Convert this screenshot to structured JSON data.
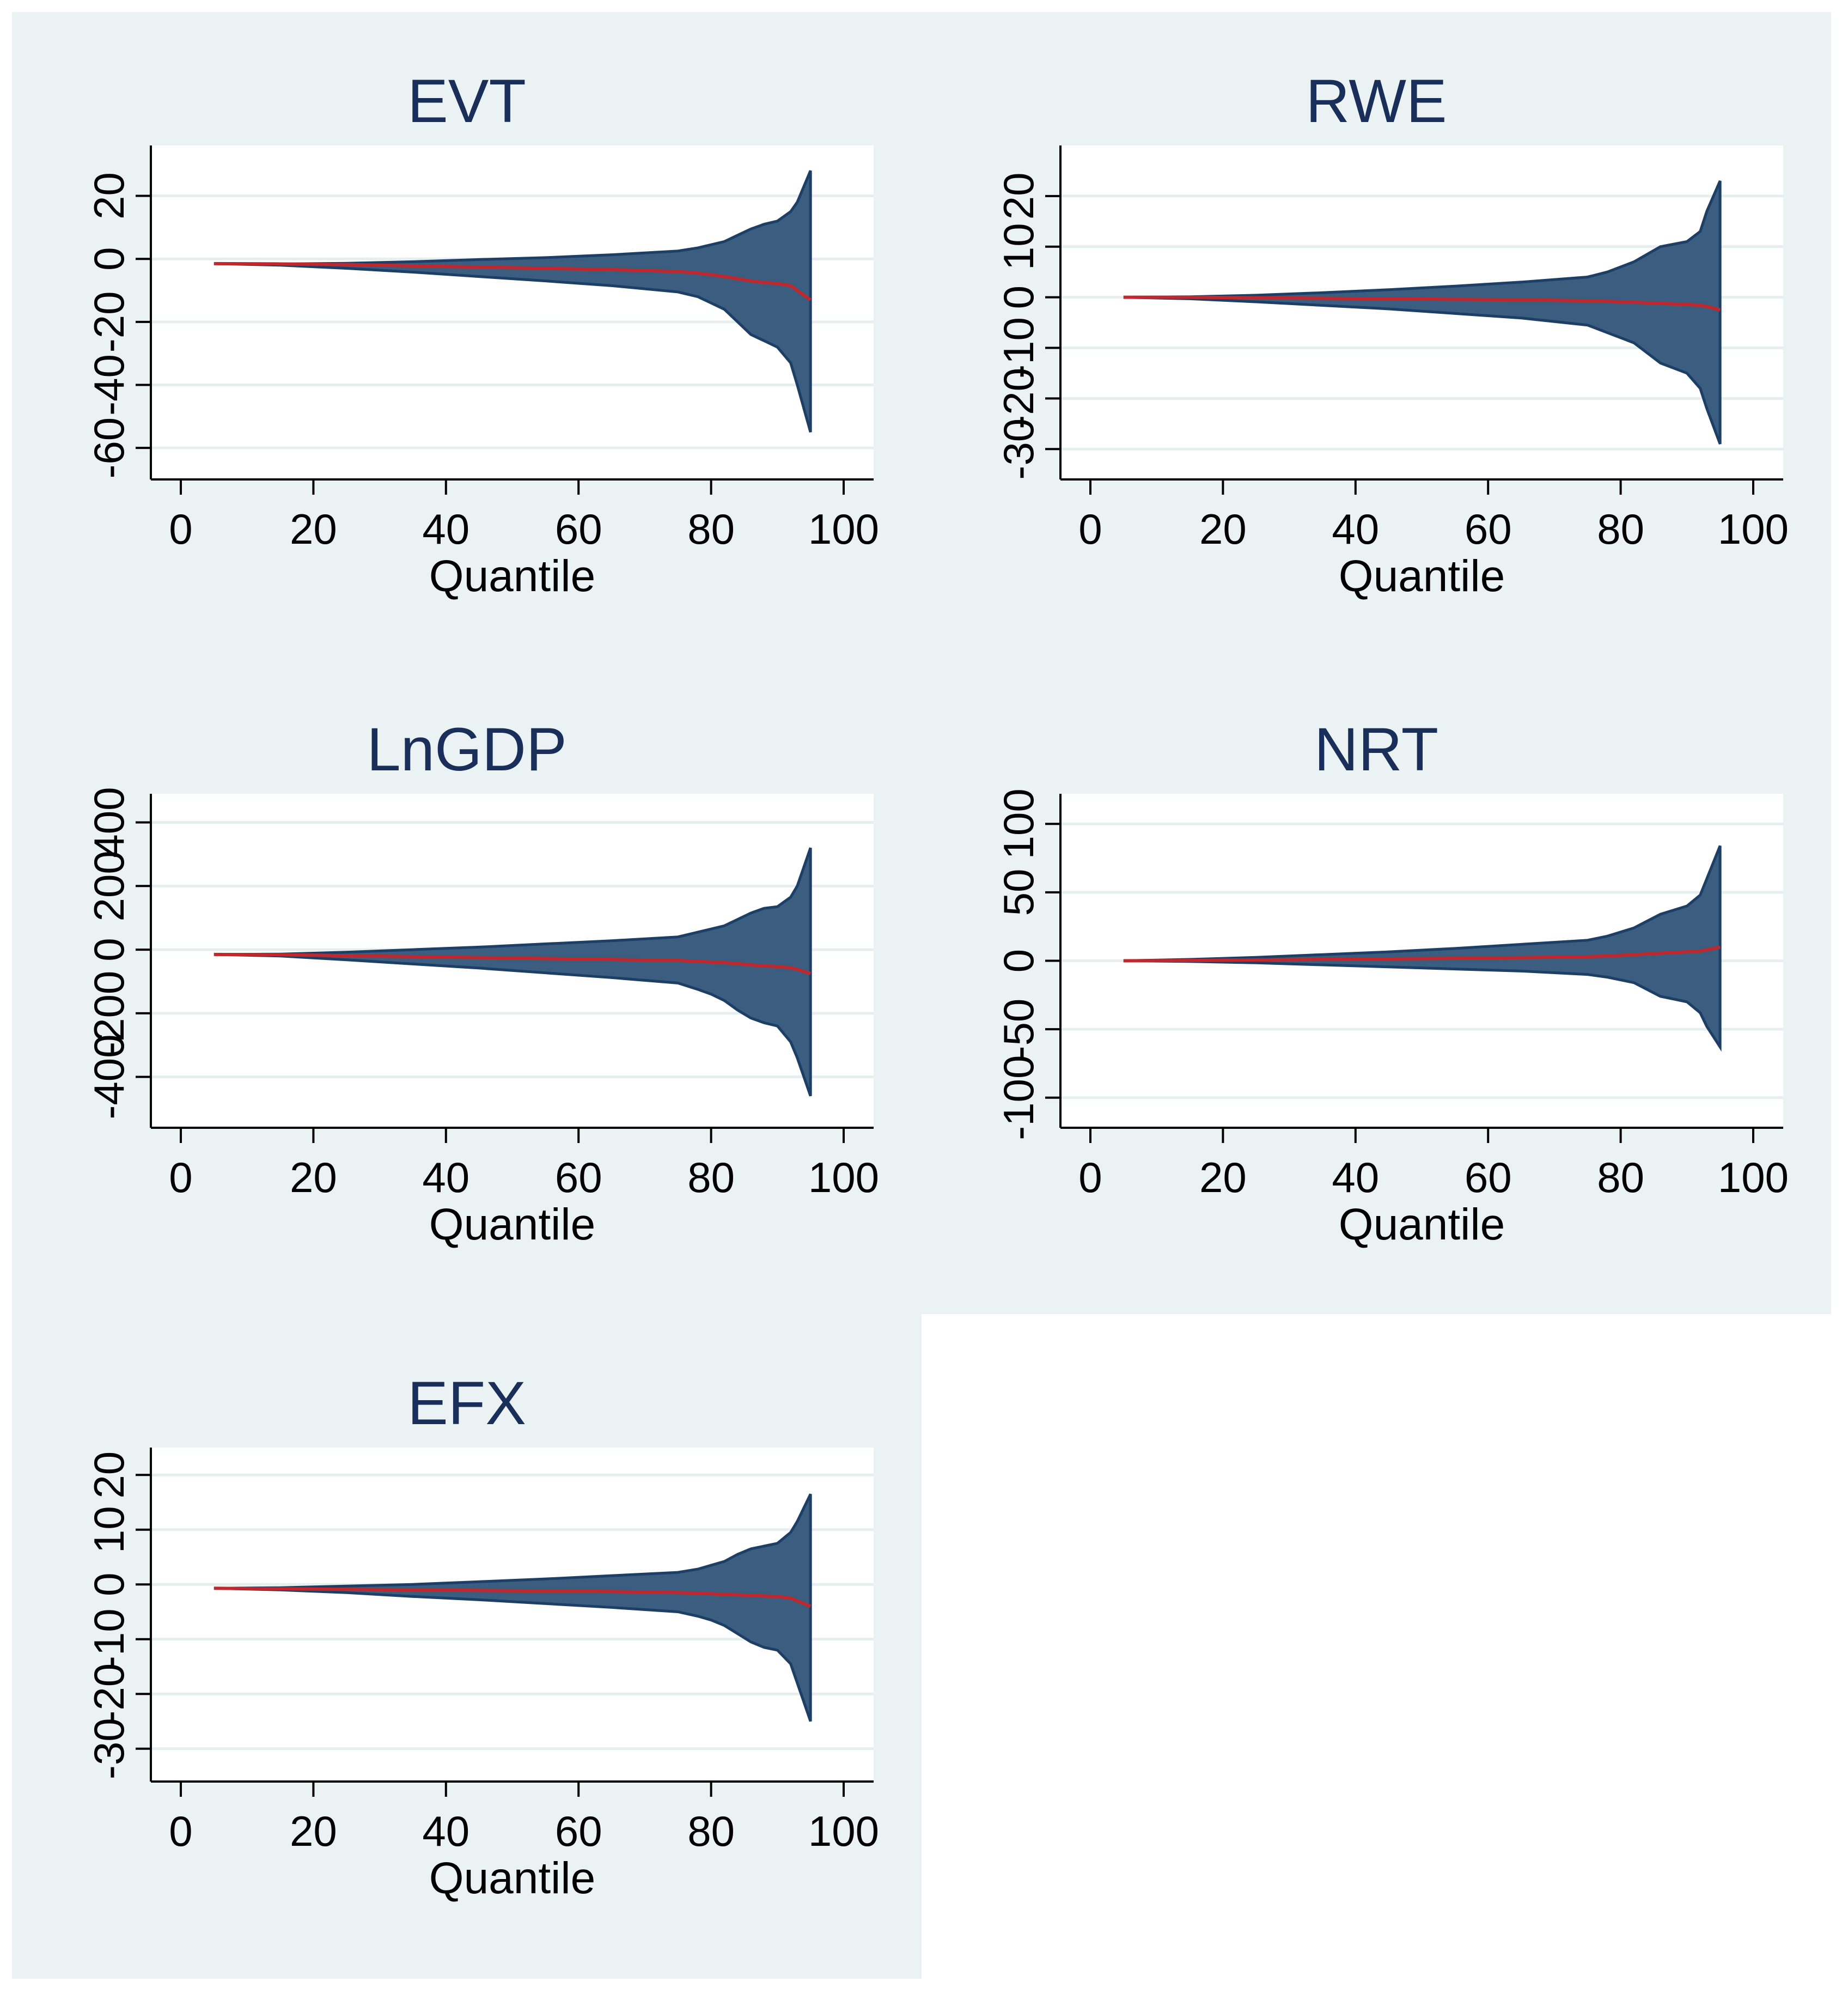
{
  "colors": {
    "panel_bg": "#eaf2f3",
    "band_fill": "#3b5d80",
    "band_edge": "#1d3f66",
    "line": "#c0282d",
    "title": "#1a2e5a"
  },
  "chart_data": [
    {
      "type": "area",
      "title": "EVT",
      "xlabel": "Quantile",
      "ylabel": "",
      "xlim": [
        0,
        100
      ],
      "ylim": [
        -70,
        36
      ],
      "xticks": [
        "0",
        "20",
        "40",
        "60",
        "80",
        "100"
      ],
      "yticks": [
        "-60",
        "-40",
        "-20",
        "0",
        "20"
      ],
      "ytick_values": [
        -60,
        -40,
        -20,
        0,
        20
      ],
      "x": [
        5,
        15,
        25,
        35,
        45,
        55,
        65,
        75,
        78,
        80,
        82,
        84,
        86,
        88,
        90,
        92,
        93,
        95
      ],
      "upper": [
        -1.5,
        -1.6,
        -1.4,
        -0.9,
        -0.2,
        0.4,
        1.3,
        2.5,
        3.5,
        4.5,
        5.5,
        7.5,
        9.5,
        11,
        12,
        15,
        18,
        28
      ],
      "lower": [
        -1.5,
        -2.0,
        -3.0,
        -4.2,
        -5.6,
        -7.0,
        -8.5,
        -10.5,
        -12,
        -14,
        -16,
        -20,
        -24,
        -26,
        -28,
        -33,
        -40,
        -55
      ],
      "line": [
        -1.5,
        -1.6,
        -1.8,
        -2.2,
        -2.6,
        -3.0,
        -3.4,
        -4.0,
        -4.5,
        -5.0,
        -5.6,
        -6.3,
        -7.0,
        -7.5,
        -7.8,
        -8.5,
        -10,
        -13
      ]
    },
    {
      "type": "area",
      "title": "RWE",
      "xlabel": "Quantile",
      "ylabel": "",
      "xlim": [
        0,
        100
      ],
      "ylim": [
        -36,
        30
      ],
      "xticks": [
        "0",
        "20",
        "40",
        "60",
        "80",
        "100"
      ],
      "yticks": [
        "-30",
        "-20",
        "-10",
        "0",
        "10",
        "20"
      ],
      "ytick_values": [
        -30,
        -20,
        -10,
        0,
        10,
        20
      ],
      "x": [
        5,
        15,
        25,
        35,
        45,
        55,
        65,
        75,
        78,
        80,
        82,
        84,
        86,
        88,
        90,
        92,
        93,
        95
      ],
      "upper": [
        0,
        0.1,
        0.4,
        0.9,
        1.5,
        2.2,
        3.0,
        4.0,
        5.0,
        6.0,
        7.0,
        8.5,
        10,
        10.5,
        11,
        13,
        17,
        23
      ],
      "lower": [
        0,
        -0.3,
        -0.9,
        -1.6,
        -2.3,
        -3.2,
        -4.1,
        -5.5,
        -7.0,
        -8.0,
        -9.0,
        -11,
        -13,
        -14,
        -15,
        -18,
        -22,
        -29
      ],
      "line": [
        0,
        0,
        -0.1,
        -0.2,
        -0.3,
        -0.4,
        -0.5,
        -0.7,
        -0.8,
        -0.9,
        -1.0,
        -1.1,
        -1.2,
        -1.3,
        -1.4,
        -1.6,
        -1.8,
        -2.5
      ]
    },
    {
      "type": "area",
      "title": "LnGDP",
      "xlabel": "Quantile",
      "ylabel": "",
      "xlim": [
        0,
        100
      ],
      "ylim": [
        -560,
        490
      ],
      "xticks": [
        "0",
        "20",
        "40",
        "60",
        "80",
        "100"
      ],
      "yticks": [
        "-400",
        "-200",
        "0",
        "200",
        "400"
      ],
      "ytick_values": [
        -400,
        -200,
        0,
        200,
        400
      ],
      "x": [
        5,
        15,
        25,
        35,
        45,
        55,
        65,
        75,
        78,
        80,
        82,
        84,
        86,
        88,
        90,
        92,
        93,
        95
      ],
      "upper": [
        -15,
        -14,
        -8,
        0,
        8,
        18,
        28,
        40,
        55,
        65,
        75,
        95,
        115,
        130,
        135,
        165,
        200,
        320
      ],
      "lower": [
        -15,
        -20,
        -32,
        -45,
        -58,
        -73,
        -88,
        -105,
        -125,
        -140,
        -160,
        -190,
        -215,
        -230,
        -240,
        -290,
        -340,
        -460
      ],
      "line": [
        -15,
        -16,
        -19,
        -22,
        -25,
        -28,
        -31,
        -34,
        -37,
        -39,
        -41,
        -44,
        -48,
        -51,
        -53,
        -57,
        -62,
        -75
      ]
    },
    {
      "type": "area",
      "title": "NRT",
      "xlabel": "Quantile",
      "ylabel": "",
      "xlim": [
        0,
        100
      ],
      "ylim": [
        -122,
        122
      ],
      "xticks": [
        "0",
        "20",
        "40",
        "60",
        "80",
        "100"
      ],
      "yticks": [
        "-100",
        "-50",
        "0",
        "50",
        "100"
      ],
      "ytick_values": [
        -100,
        -50,
        0,
        50,
        100
      ],
      "x": [
        5,
        15,
        25,
        35,
        45,
        55,
        65,
        75,
        78,
        80,
        82,
        84,
        86,
        88,
        90,
        92,
        93,
        95
      ],
      "upper": [
        0,
        1,
        2.5,
        4.5,
        6.5,
        9,
        12,
        15,
        18,
        21,
        24,
        29,
        34,
        37,
        40,
        48,
        60,
        84
      ],
      "lower": [
        0,
        -0.5,
        -1.5,
        -3,
        -4.5,
        -6,
        -7.5,
        -10,
        -12,
        -14,
        -16,
        -21,
        -26,
        -28,
        -30,
        -38,
        -48,
        -63
      ],
      "line": [
        0,
        0.2,
        0.6,
        1.0,
        1.4,
        1.8,
        2.3,
        3.0,
        3.5,
        4.0,
        4.5,
        5.0,
        5.5,
        6.0,
        6.5,
        7.0,
        8.0,
        10
      ]
    },
    {
      "type": "area",
      "title": "EFX",
      "xlabel": "Quantile",
      "ylabel": "",
      "xlim": [
        0,
        100
      ],
      "ylim": [
        -36,
        25
      ],
      "xticks": [
        "0",
        "20",
        "40",
        "60",
        "80",
        "100"
      ],
      "yticks": [
        "-30",
        "-20",
        "-10",
        "0",
        "10",
        "20"
      ],
      "ytick_values": [
        -30,
        -20,
        -10,
        0,
        10,
        20
      ],
      "x": [
        5,
        15,
        25,
        35,
        45,
        55,
        65,
        75,
        78,
        80,
        82,
        84,
        86,
        88,
        90,
        92,
        93,
        95
      ],
      "upper": [
        -0.7,
        -0.6,
        -0.3,
        0,
        0.5,
        1.0,
        1.6,
        2.2,
        2.8,
        3.5,
        4.2,
        5.5,
        6.5,
        7.0,
        7.5,
        9.5,
        11.5,
        16.5
      ],
      "lower": [
        -0.7,
        -1.0,
        -1.5,
        -2.2,
        -2.8,
        -3.5,
        -4.2,
        -5.0,
        -5.8,
        -6.5,
        -7.5,
        -9.0,
        -10.5,
        -11.5,
        -12,
        -14.5,
        -18,
        -25
      ],
      "line": [
        -0.7,
        -0.8,
        -0.9,
        -1.0,
        -1.1,
        -1.2,
        -1.3,
        -1.5,
        -1.6,
        -1.7,
        -1.8,
        -1.9,
        -2.0,
        -2.1,
        -2.2,
        -2.5,
        -3.0,
        -4.0
      ]
    }
  ]
}
